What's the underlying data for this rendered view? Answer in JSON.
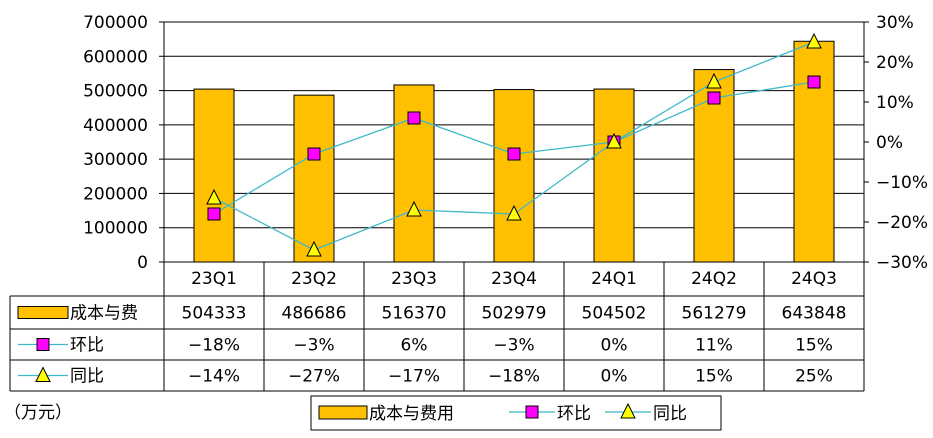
{
  "chart_data": {
    "type": "bar",
    "categories": [
      "23Q1",
      "23Q2",
      "23Q3",
      "23Q4",
      "24Q1",
      "24Q2",
      "24Q3"
    ],
    "unit_note": "（万元）",
    "left_axis": {
      "ylim": [
        0,
        700000
      ],
      "ticks": [
        "0",
        "100000",
        "200000",
        "300000",
        "400000",
        "500000",
        "600000",
        "700000"
      ]
    },
    "right_axis": {
      "ylim": [
        -30,
        30
      ],
      "ticks": [
        "-30%",
        "-20%",
        "-10%",
        "0%",
        "10%",
        "20%",
        "30%"
      ]
    },
    "grid": true,
    "legend_position": "bottom",
    "series": [
      {
        "name": "成本与费用",
        "table_name": "成本与费",
        "type": "bar",
        "axis": "left",
        "color": "#FFC000",
        "values": [
          504333,
          486686,
          516370,
          502979,
          504502,
          561279,
          643848
        ],
        "labels": [
          "504333",
          "486686",
          "516370",
          "502979",
          "504502",
          "561279",
          "643848"
        ]
      },
      {
        "name": "环比",
        "table_name": "环比",
        "type": "line",
        "marker": "square",
        "axis": "right",
        "color": "#FF00FF",
        "line_color": "#3FB8C8",
        "values": [
          -18,
          -3,
          6,
          -3,
          0,
          11,
          15
        ],
        "labels": [
          "-18%",
          "-3%",
          "6%",
          "-3%",
          "0%",
          "11%",
          "15%"
        ]
      },
      {
        "name": "同比",
        "table_name": "同比",
        "type": "line",
        "marker": "triangle",
        "axis": "right",
        "color": "#FFFF00",
        "line_color": "#3FB8C8",
        "values": [
          -14,
          -27,
          -17,
          -18,
          0,
          15,
          25
        ],
        "labels": [
          "-14%",
          "-27%",
          "-17%",
          "-18%",
          "0%",
          "15%",
          "25%"
        ]
      }
    ]
  }
}
